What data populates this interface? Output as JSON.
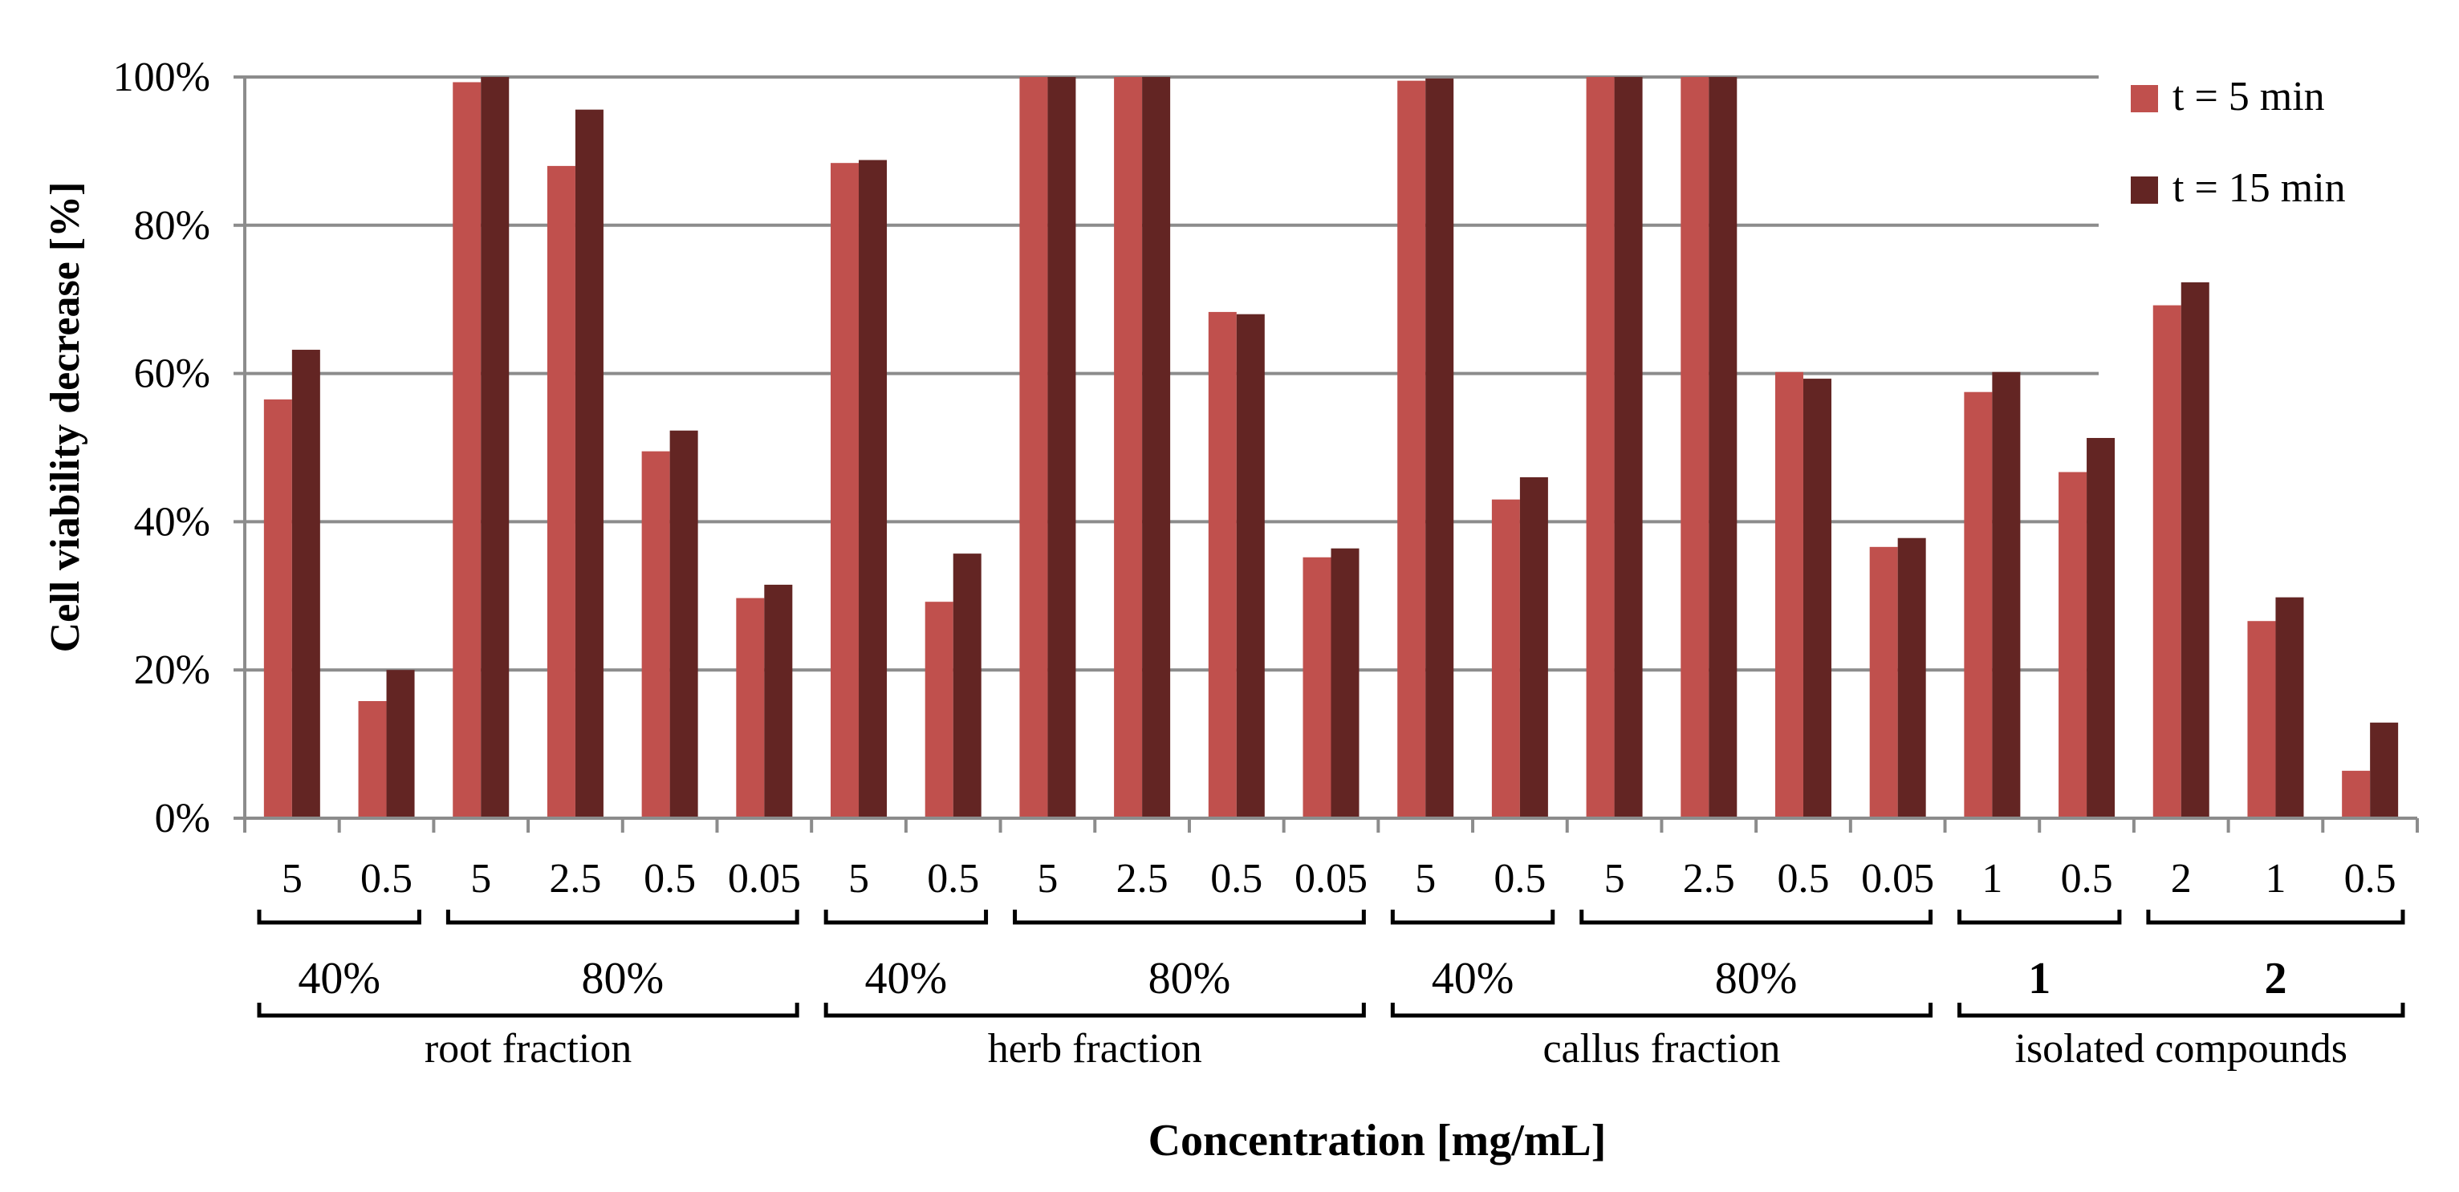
{
  "chart_data": {
    "type": "bar",
    "xlabel": "Concentration [mg/mL]",
    "ylabel": "Cell viability decrease [%]",
    "ylim": [
      0,
      100
    ],
    "yticks": [
      0,
      20,
      40,
      60,
      80,
      100
    ],
    "ytick_labels": [
      "0%",
      "20%",
      "40%",
      "60%",
      "80%",
      "100%"
    ],
    "grid": true,
    "legend_position": "top-right",
    "categories": [
      "5",
      "0.5",
      "5",
      "2.5",
      "0.5",
      "0.05",
      "5",
      "0.5",
      "5",
      "2.5",
      "0.5",
      "0.05",
      "5",
      "0.5",
      "5",
      "2.5",
      "0.5",
      "0.05",
      "1",
      "0.5",
      "2",
      "1",
      "0.5"
    ],
    "series": [
      {
        "name": "t = 5 min",
        "color": "#c0504d",
        "values": [
          56.5,
          15.8,
          99.3,
          88.0,
          49.5,
          29.7,
          88.4,
          29.2,
          100,
          100,
          68.3,
          35.2,
          99.5,
          43.0,
          100,
          100,
          60.2,
          36.6,
          57.5,
          46.7,
          69.2,
          26.6,
          6.4
        ]
      },
      {
        "name": "t = 15 min",
        "color": "#632523",
        "values": [
          63.2,
          20.0,
          100,
          95.6,
          52.3,
          31.5,
          88.8,
          35.7,
          100,
          100,
          68.0,
          36.4,
          99.8,
          46.0,
          100,
          100,
          59.3,
          37.8,
          60.2,
          51.3,
          72.3,
          29.8,
          12.9
        ]
      }
    ],
    "level2_groups": [
      {
        "label": "40%",
        "bold": false,
        "span": [
          0,
          1
        ]
      },
      {
        "label": "80%",
        "bold": false,
        "span": [
          2,
          5
        ]
      },
      {
        "label": "40%",
        "bold": false,
        "span": [
          6,
          7
        ]
      },
      {
        "label": "80%",
        "bold": false,
        "span": [
          8,
          11
        ]
      },
      {
        "label": "40%",
        "bold": false,
        "span": [
          12,
          13
        ]
      },
      {
        "label": "80%",
        "bold": false,
        "span": [
          14,
          17
        ]
      },
      {
        "label": "1",
        "bold": true,
        "span": [
          18,
          19
        ]
      },
      {
        "label": "2",
        "bold": true,
        "span": [
          20,
          22
        ]
      }
    ],
    "level3_groups": [
      {
        "label": "root fraction",
        "span": [
          0,
          5
        ]
      },
      {
        "label": "herb fraction",
        "span": [
          6,
          11
        ]
      },
      {
        "label": "callus fraction",
        "span": [
          12,
          17
        ]
      },
      {
        "label": "isolated compounds",
        "span": [
          18,
          22
        ]
      }
    ]
  }
}
